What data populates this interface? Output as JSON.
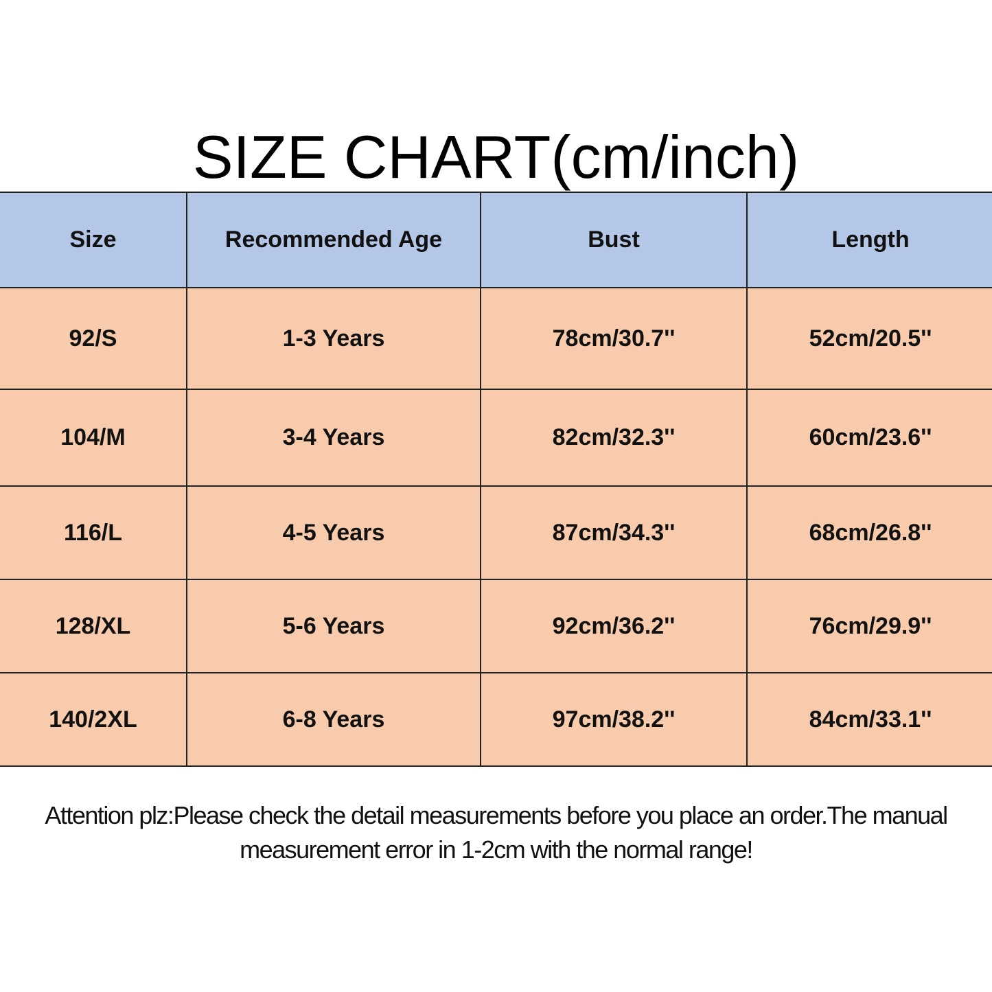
{
  "header": {
    "title": "SIZE CHART(cm/inch)"
  },
  "table": {
    "columns": [
      "Size",
      "Recommended Age",
      "Bust",
      "Length"
    ],
    "rows": [
      [
        "92/S",
        "1-3 Years",
        "78cm/30.7''",
        "52cm/20.5''"
      ],
      [
        "104/M",
        "3-4 Years",
        "82cm/32.3''",
        "60cm/23.6''"
      ],
      [
        "116/L",
        "4-5 Years",
        "87cm/34.3''",
        "68cm/26.8''"
      ],
      [
        "128/XL",
        "5-6 Years",
        "92cm/36.2''",
        "76cm/29.9''"
      ],
      [
        "140/2XL",
        "6-8 Years",
        "97cm/38.2''",
        "84cm/33.1''"
      ]
    ]
  },
  "footer": {
    "note": "Attention plz:Please check the detail measurements before you place an order.The manual measurement error in 1-2cm with the normal range!"
  }
}
